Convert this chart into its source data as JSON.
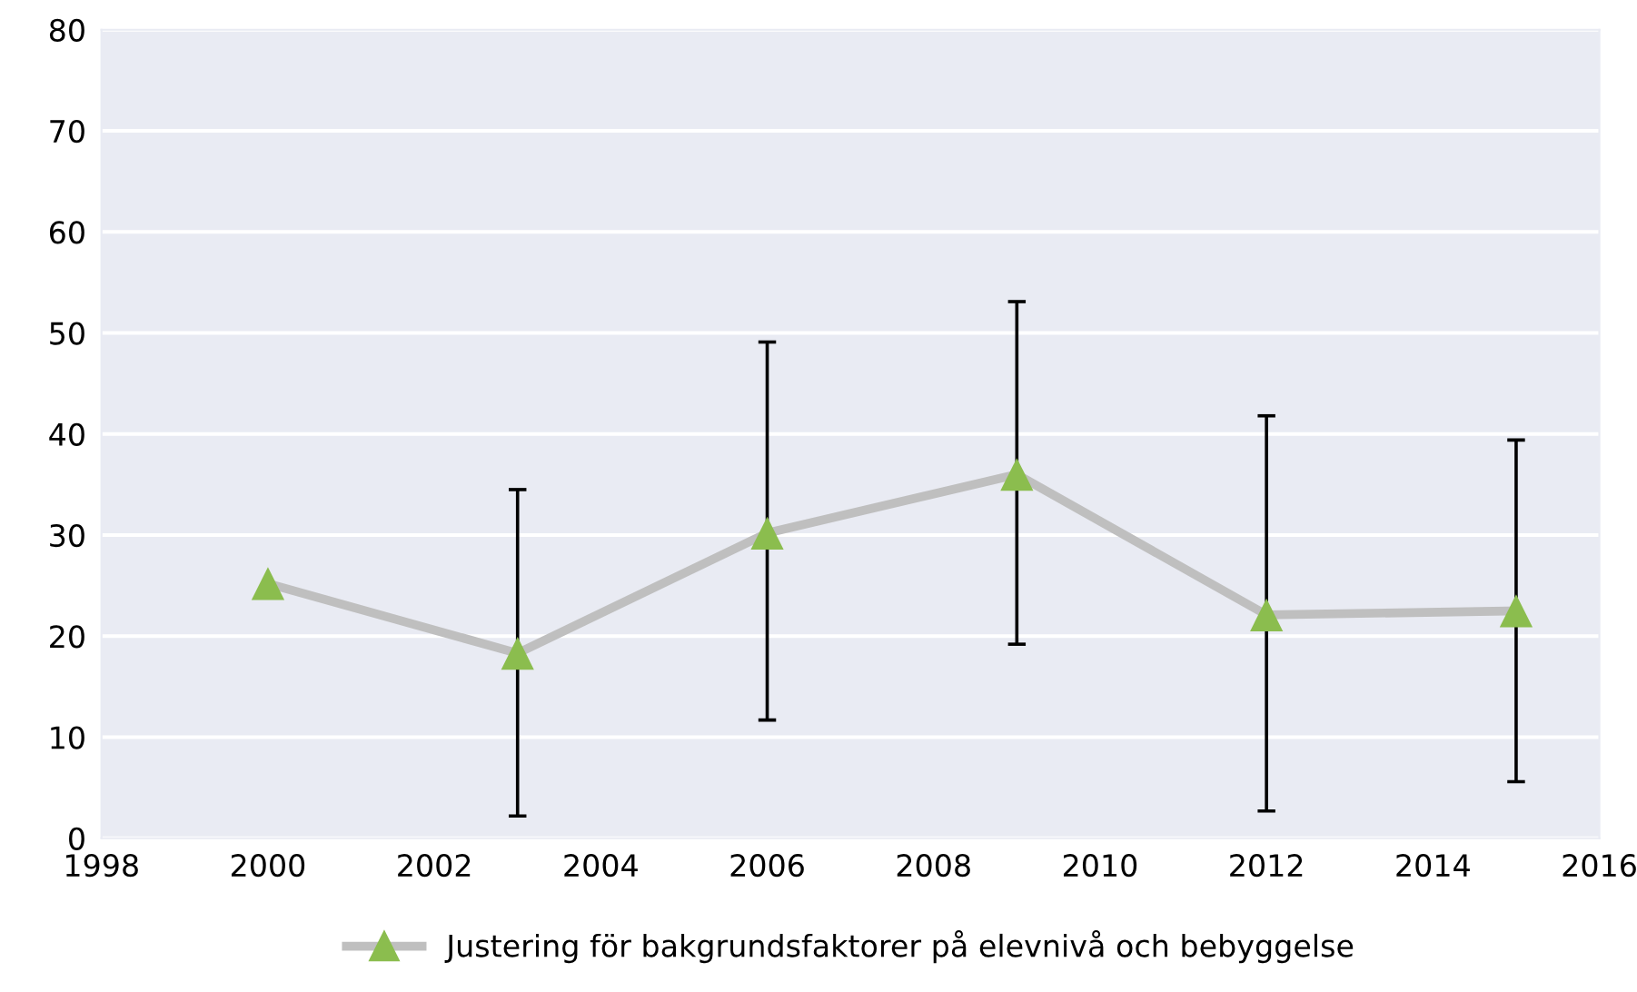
{
  "chart_data": {
    "type": "line",
    "x": [
      2000,
      2003,
      2006,
      2009,
      2012,
      2015
    ],
    "series": [
      {
        "name": "Justering för bakgrundsfaktorer på elevnivå och bebyggelse",
        "color": "#bfbfbf",
        "colors": [
          "#8bbd4e",
          "#8bbd4e",
          "#8bbd4e",
          "#8bbd4e",
          "#8bbd4e",
          "#8bbd4e"
        ],
        "values": [
          25.2,
          18.3,
          30.2,
          36.0,
          22.1,
          22.5
        ],
        "errors": [
          null,
          [
            2.2,
            34.5
          ],
          [
            11.7,
            49.1
          ],
          [
            19.2,
            53.1
          ],
          [
            2.7,
            41.8
          ],
          [
            5.6,
            39.4
          ]
        ]
      }
    ],
    "xlim": [
      1998,
      2016
    ],
    "xticks": [
      1998,
      2000,
      2002,
      2004,
      2006,
      2008,
      2010,
      2012,
      2014,
      2016
    ],
    "ylim": [
      0,
      80
    ],
    "yticks": [
      0,
      10,
      20,
      30,
      40,
      50,
      60,
      70,
      80
    ],
    "grid": "y",
    "legend": "bottom",
    "marker": "triangle",
    "line_style": "solid"
  }
}
